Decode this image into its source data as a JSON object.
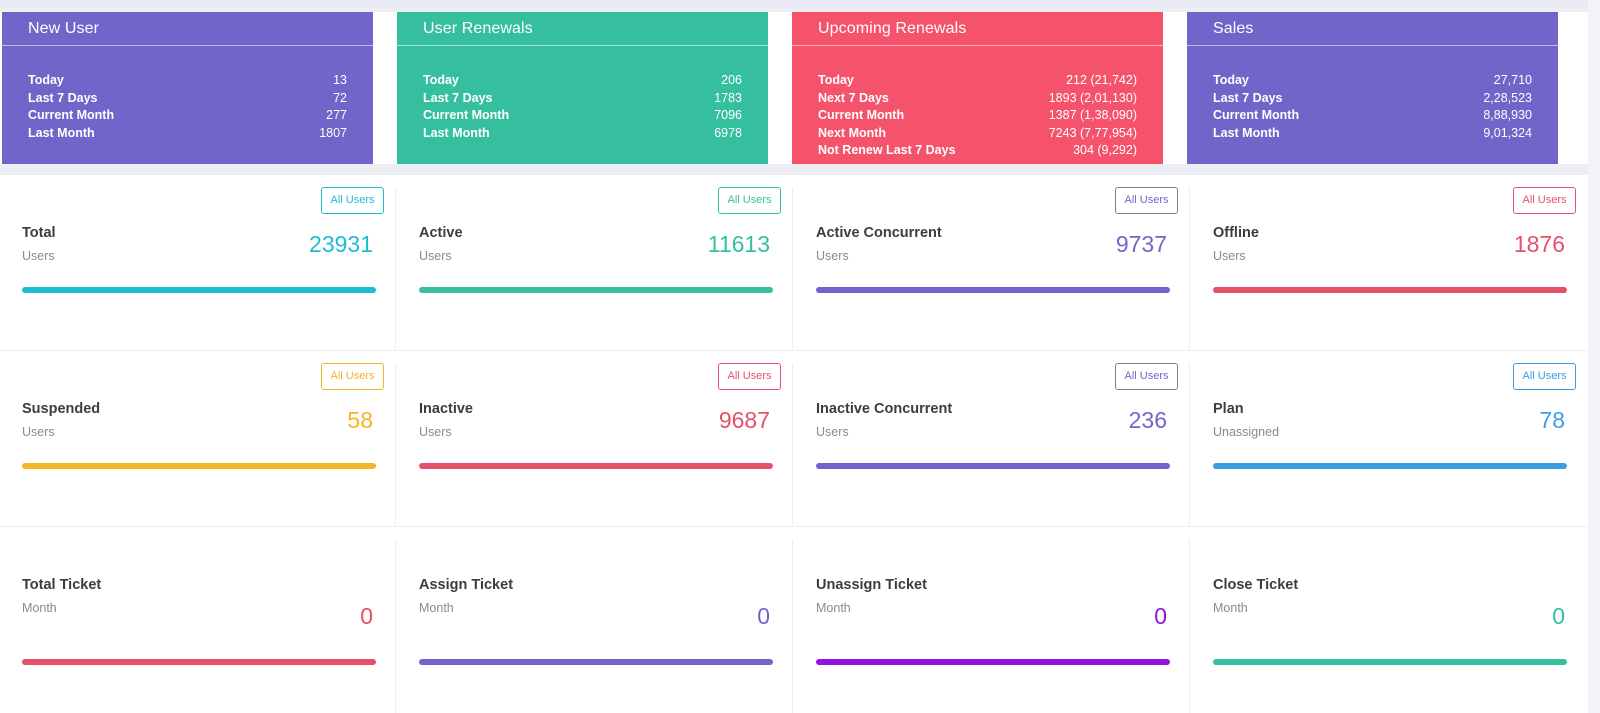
{
  "summary": [
    {
      "title": "New User",
      "color": "#7066c9",
      "rows": [
        {
          "label": "Today",
          "value": "13"
        },
        {
          "label": "Last 7 Days",
          "value": "72"
        },
        {
          "label": "Current Month",
          "value": "277"
        },
        {
          "label": "Last Month",
          "value": "1807"
        }
      ]
    },
    {
      "title": "User Renewals",
      "color": "#36bf9f",
      "rows": [
        {
          "label": "Today",
          "value": "206"
        },
        {
          "label": "Last 7 Days",
          "value": "1783"
        },
        {
          "label": "Current Month",
          "value": "7096"
        },
        {
          "label": "Last Month",
          "value": "6978"
        }
      ]
    },
    {
      "title": "Upcoming Renewals",
      "color": "#f5536b",
      "rows": [
        {
          "label": "Today",
          "value": "212 (21,742)"
        },
        {
          "label": "Next 7 Days",
          "value": "1893 (2,01,130)"
        },
        {
          "label": "Current Month",
          "value": "1387 (1,38,090)"
        },
        {
          "label": "Next Month",
          "value": "7243 (7,77,954)"
        },
        {
          "label": "Not Renew Last 7 Days",
          "value": "304 (9,292)"
        }
      ]
    },
    {
      "title": "Sales",
      "color": "#7066c9",
      "rows": [
        {
          "label": "Today",
          "value": "27,710"
        },
        {
          "label": "Last 7 Days",
          "value": "2,28,523"
        },
        {
          "label": "Current Month",
          "value": "8,88,930"
        },
        {
          "label": "Last Month",
          "value": "9,01,324"
        }
      ]
    }
  ],
  "stats": [
    [
      {
        "title": "Total",
        "sub": "Users",
        "value": "23931",
        "button": "All Users",
        "color": "#1bbed3"
      },
      {
        "title": "Active",
        "sub": "Users",
        "value": "11613",
        "button": "All Users",
        "color": "#36bf9f"
      },
      {
        "title": "Active Concurrent",
        "sub": "Users",
        "value": "9737",
        "button": "All Users",
        "color": "#7066c9"
      },
      {
        "title": "Offline",
        "sub": "Users",
        "value": "1876",
        "button": "All Users",
        "color": "#e5516a"
      }
    ],
    [
      {
        "title": "Suspended",
        "sub": "Users",
        "value": "58",
        "button": "All Users",
        "color": "#f3b426"
      },
      {
        "title": "Inactive",
        "sub": "Users",
        "value": "9687",
        "button": "All Users",
        "color": "#e5516a"
      },
      {
        "title": "Inactive Concurrent",
        "sub": "Users",
        "value": "236",
        "button": "All Users",
        "color": "#7066c9"
      },
      {
        "title": "Plan",
        "sub": "Unassigned",
        "value": "78",
        "button": "All Users",
        "color": "#3c9de0"
      }
    ],
    [
      {
        "title": "Total Ticket",
        "sub": "Month",
        "value": "0",
        "color": "#e5516a"
      },
      {
        "title": "Assign Ticket",
        "sub": "Month",
        "value": "0",
        "color": "#7066c9"
      },
      {
        "title": "Unassign Ticket",
        "sub": "Month",
        "value": "0",
        "color": "#9013df"
      },
      {
        "title": "Close Ticket",
        "sub": "Month",
        "value": "0",
        "color": "#36bf9f"
      }
    ]
  ]
}
